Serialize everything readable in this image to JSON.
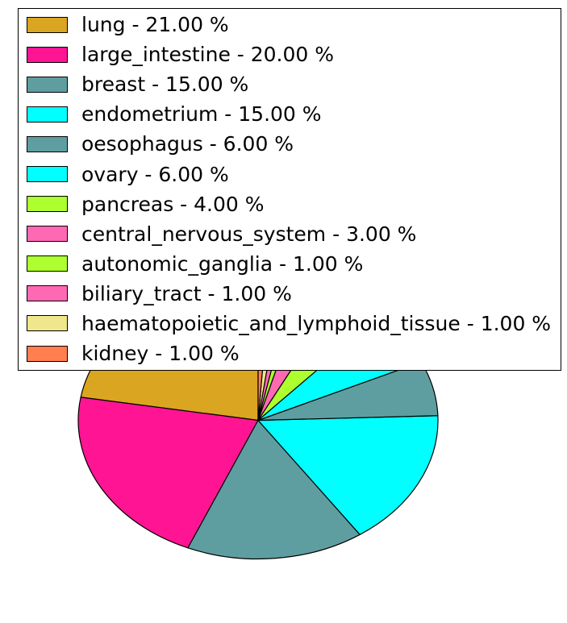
{
  "figure": {
    "background": "#ffffff",
    "legend_border_color": "#000000",
    "wedge_edge_color": "#000000"
  },
  "chart_data": {
    "type": "pie",
    "title": "",
    "start_angle_deg": 90,
    "direction": "counterclockwise",
    "legend_position": "upper-left",
    "slices": [
      {
        "label": "lung",
        "pct": 21.0,
        "legend_text": "lung - 21.00 %",
        "color": "#DAA520"
      },
      {
        "label": "large_intestine",
        "pct": 20.0,
        "legend_text": "large_intestine - 20.00 %",
        "color": "#FF1493"
      },
      {
        "label": "breast",
        "pct": 15.0,
        "legend_text": "breast - 15.00 %",
        "color": "#5F9EA0"
      },
      {
        "label": "endometrium",
        "pct": 15.0,
        "legend_text": "endometrium - 15.00 %",
        "color": "#00FFFF"
      },
      {
        "label": "oesophagus",
        "pct": 6.0,
        "legend_text": "oesophagus - 6.00 %",
        "color": "#5F9EA0"
      },
      {
        "label": "ovary",
        "pct": 6.0,
        "legend_text": "ovary - 6.00 %",
        "color": "#00FFFF"
      },
      {
        "label": "pancreas",
        "pct": 4.0,
        "legend_text": "pancreas - 4.00 %",
        "color": "#ADFF2F"
      },
      {
        "label": "central_nervous_system",
        "pct": 3.0,
        "legend_text": "central_nervous_system - 3.00 %",
        "color": "#FF69B4"
      },
      {
        "label": "autonomic_ganglia",
        "pct": 1.0,
        "legend_text": "autonomic_ganglia - 1.00 %",
        "color": "#ADFF2F"
      },
      {
        "label": "biliary_tract",
        "pct": 1.0,
        "legend_text": "biliary_tract - 1.00 %",
        "color": "#FF69B4"
      },
      {
        "label": "haematopoietic_and_lymphoid_tissue",
        "pct": 1.0,
        "legend_text": "haematopoietic_and_lymphoid_tissue - 1.00 %",
        "color": "#F0E68C"
      },
      {
        "label": "kidney",
        "pct": 1.0,
        "legend_text": "kidney - 1.00 %",
        "color": "#FF7F50"
      }
    ]
  }
}
